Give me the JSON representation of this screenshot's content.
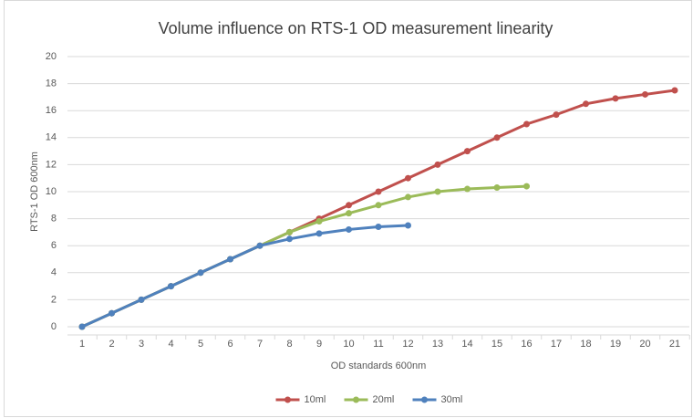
{
  "chart_data": {
    "type": "line",
    "title": "Volume influence on RTS-1 OD measurement linearity",
    "x_label": "OD standards 600nm",
    "y_label": "RTS-1  OD 600nm",
    "x": [
      1,
      2,
      3,
      4,
      5,
      6,
      7,
      8,
      9,
      10,
      11,
      12,
      13,
      14,
      15,
      16,
      17,
      18,
      19,
      20,
      21
    ],
    "series": [
      {
        "name": "10ml",
        "color": "#c0504d",
        "values": [
          0,
          1,
          2,
          3,
          4,
          5,
          6,
          7,
          8,
          9,
          10,
          11,
          12,
          13,
          14,
          15,
          15.7,
          16.5,
          16.9,
          17.2,
          17.5
        ]
      },
      {
        "name": "20ml",
        "color": "#9bbb59",
        "values": [
          0,
          1,
          2,
          3,
          4,
          5,
          6,
          7,
          7.8,
          8.4,
          9,
          9.6,
          10,
          10.2,
          10.3,
          10.4,
          null,
          null,
          null,
          null,
          null
        ]
      },
      {
        "name": "30ml",
        "color": "#4f81bd",
        "values": [
          0,
          1,
          2,
          3,
          4,
          5,
          6,
          6.5,
          6.9,
          7.2,
          7.4,
          7.5,
          null,
          null,
          null,
          null,
          null,
          null,
          null,
          null,
          null
        ]
      }
    ],
    "xlim": [
      1,
      21
    ],
    "xticks": [
      1,
      2,
      3,
      4,
      5,
      6,
      7,
      8,
      9,
      10,
      11,
      12,
      13,
      14,
      15,
      16,
      17,
      18,
      19,
      20,
      21
    ],
    "ylim": [
      0,
      20
    ],
    "yticks": [
      0,
      2,
      4,
      6,
      8,
      10,
      12,
      14,
      16,
      18,
      20
    ],
    "grid": true,
    "legend": "bottom"
  }
}
